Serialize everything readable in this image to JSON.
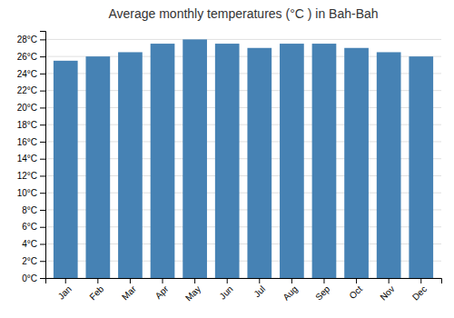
{
  "chart_data": {
    "type": "bar",
    "title": "Average monthly temperatures (°C ) in Bah-Bah",
    "categories": [
      "Jan",
      "Feb",
      "Mar",
      "Apr",
      "May",
      "Jun",
      "Jul",
      "Aug",
      "Sep",
      "Oct",
      "Nov",
      "Dec"
    ],
    "values": [
      25.5,
      26.0,
      26.5,
      27.5,
      28.0,
      27.5,
      27.0,
      27.5,
      27.5,
      27.0,
      26.5,
      26.0
    ],
    "ylim": [
      0,
      29
    ],
    "yticks": [
      {
        "value": 0,
        "label": "0°C"
      },
      {
        "value": 2,
        "label": "2°C"
      },
      {
        "value": 4,
        "label": "4°C"
      },
      {
        "value": 6,
        "label": "6°C"
      },
      {
        "value": 8,
        "label": "8°C"
      },
      {
        "value": 10,
        "label": "10°C"
      },
      {
        "value": 12,
        "label": "12°C"
      },
      {
        "value": 14,
        "label": "14°C"
      },
      {
        "value": 16,
        "label": "16°C"
      },
      {
        "value": 18,
        "label": "18°C"
      },
      {
        "value": 20,
        "label": "20°C"
      },
      {
        "value": 22,
        "label": "22°C"
      },
      {
        "value": 24,
        "label": "24°C"
      },
      {
        "value": 26,
        "label": "26°C"
      },
      {
        "value": 28,
        "label": "28°C"
      }
    ],
    "grid": true
  }
}
